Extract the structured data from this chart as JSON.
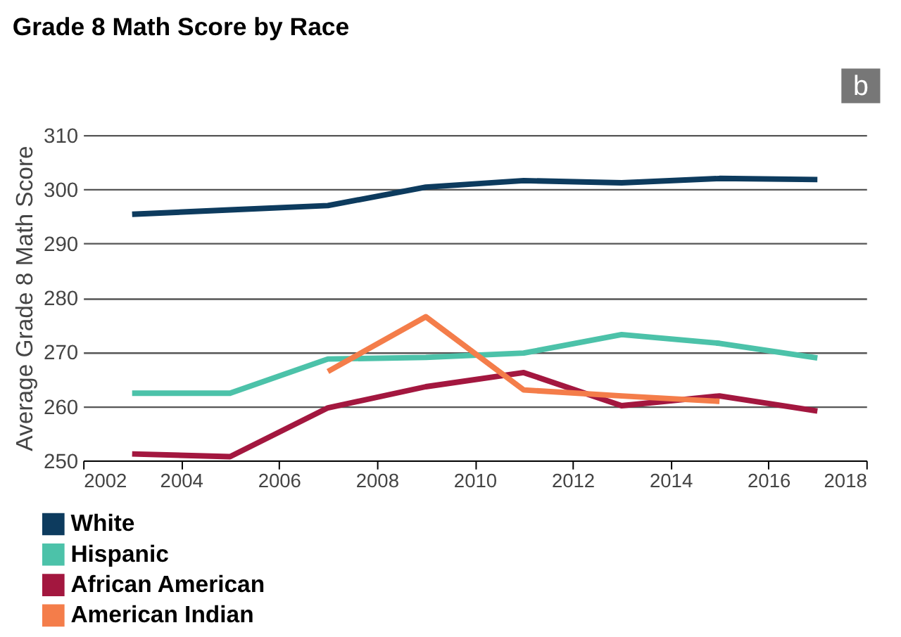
{
  "chart_data": {
    "type": "line",
    "title": "Grade 8 Math Score by Race",
    "ylabel": "Average Grade 8 Math Score",
    "annotations": [
      "b"
    ],
    "x": [
      2003,
      2005,
      2007,
      2009,
      2011,
      2013,
      2015,
      2017
    ],
    "series": [
      {
        "name": "White",
        "color": "#0d3b5e",
        "values": [
          295.4,
          296.2,
          297.0,
          300.4,
          301.6,
          301.2,
          302.0,
          301.8
        ]
      },
      {
        "name": "Hispanic",
        "color": "#4cc2a9",
        "values": [
          262.4,
          262.4,
          268.7,
          269.0,
          269.8,
          273.2,
          271.6,
          268.9
        ]
      },
      {
        "name": "African American",
        "color": "#a3173f",
        "values": [
          251.2,
          250.7,
          259.7,
          263.6,
          266.2,
          260.1,
          261.9,
          259.1
        ]
      },
      {
        "name": "American Indian",
        "color": "#f47d4a",
        "values": [
          null,
          null,
          266.4,
          276.5,
          263.0,
          261.9,
          260.9,
          null
        ]
      }
    ],
    "xlim": [
      2002,
      2018
    ],
    "xticks": [
      2002,
      2004,
      2006,
      2008,
      2010,
      2012,
      2014,
      2016,
      2018
    ],
    "ylim": [
      250,
      310
    ],
    "yticks": [
      250,
      260,
      270,
      280,
      290,
      300,
      310
    ],
    "grid": "y",
    "legend": "bottom left",
    "line_style": "solid",
    "marker": "none"
  }
}
